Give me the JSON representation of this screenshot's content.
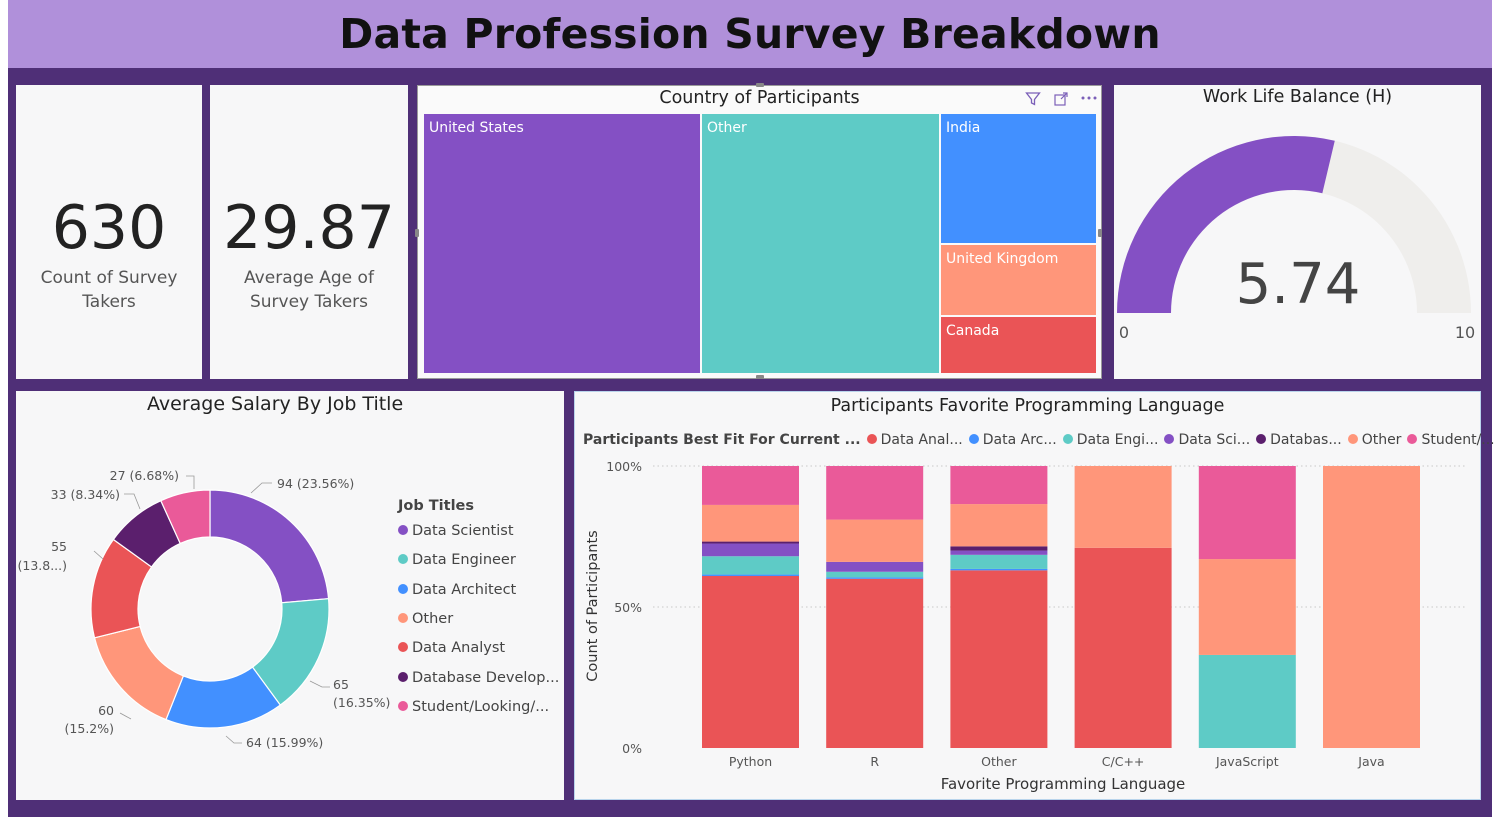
{
  "header": {
    "title": "Data Profession Survey Breakdown"
  },
  "kpis": [
    {
      "value": "630",
      "label_line1": "Count of Survey",
      "label_line2": "Takers"
    },
    {
      "value": "29.87",
      "label_line1": "Average Age of",
      "label_line2": "Survey Takers"
    }
  ],
  "treemap": {
    "title": "Country of Participants",
    "cells": [
      {
        "label": "United States",
        "color": "#8450c4"
      },
      {
        "label": "Other",
        "color": "#5ecbc6"
      },
      {
        "label": "India",
        "color": "#4290ff"
      },
      {
        "label": "United Kingdom",
        "color": "#ff967a"
      },
      {
        "label": "Canada",
        "color": "#ea5456"
      }
    ]
  },
  "gauge": {
    "title": "Work Life Balance (H)",
    "value": 5.74,
    "value_label": "5.74",
    "min": 0,
    "max": 10,
    "min_label": "0",
    "max_label": "10",
    "fill_color": "#8450c4",
    "track_color": "#efeeec"
  },
  "donut": {
    "title": "Average Salary By Job Title",
    "legend_title": "Job Titles",
    "legend": [
      {
        "label": "Data Scientist",
        "color": "#8450c4"
      },
      {
        "label": "Data Engineer",
        "color": "#5ecbc6"
      },
      {
        "label": "Data Architect",
        "color": "#4290ff"
      },
      {
        "label": "Other",
        "color": "#ff967a"
      },
      {
        "label": "Data Analyst",
        "color": "#ea5456"
      },
      {
        "label": "Database Develop...",
        "color": "#5b1f6d"
      },
      {
        "label": "Student/Looking/...",
        "color": "#ea5a99"
      }
    ],
    "data_labels": {
      "s1": "94 (23.56%)",
      "s2a": "65",
      "s2b": "(16.35%)",
      "s3": "64 (15.99%)",
      "s4a": "60",
      "s4b": "(15.2%)",
      "s5a": "55",
      "s5b": "(13.8...)",
      "s6": "33 (8.34%)",
      "s7": "27 (6.68%)"
    }
  },
  "bar_chart": {
    "title": "Participants Favorite Programming Language",
    "legend_title": "Participants Best Fit For Current ...",
    "legend": [
      {
        "label": "Data Anal...",
        "color": "#ea5456"
      },
      {
        "label": "Data Arc...",
        "color": "#4290ff"
      },
      {
        "label": "Data Engi...",
        "color": "#5ecbc6"
      },
      {
        "label": "Data Sci...",
        "color": "#8450c4"
      },
      {
        "label": "Databas...",
        "color": "#5b1f6d"
      },
      {
        "label": "Other",
        "color": "#ff967a"
      },
      {
        "label": "Student/...",
        "color": "#ea5a99"
      }
    ],
    "xlabel": "Favorite Programming Language",
    "ylabel": "Count of Participants",
    "ytick_labels": [
      "100%",
      "50%",
      "0%"
    ]
  },
  "chart_data": [
    {
      "type": "pie",
      "title": "Average Salary By Job Title",
      "categories": [
        "Data Scientist",
        "Data Engineer",
        "Data Architect",
        "Other",
        "Data Analyst",
        "Database Develop...",
        "Student/Looking/..."
      ],
      "values": [
        94,
        65,
        64,
        60,
        55,
        33,
        27
      ],
      "percentages": [
        23.56,
        16.35,
        15.99,
        15.2,
        13.8,
        8.34,
        6.68
      ],
      "legend_position": "right"
    },
    {
      "type": "bar",
      "stacked_percent": true,
      "title": "Participants Favorite Programming Language",
      "xlabel": "Favorite Programming Language",
      "ylabel": "Count of Participants",
      "categories": [
        "Python",
        "R",
        "Other",
        "C/C++",
        "JavaScript",
        "Java"
      ],
      "ylim": [
        0,
        100
      ],
      "series": [
        {
          "name": "Data Anal...",
          "values": [
            61,
            60,
            63,
            71,
            0,
            0
          ]
        },
        {
          "name": "Data Arc...",
          "values": [
            0.5,
            0.5,
            0.5,
            0,
            0,
            0
          ]
        },
        {
          "name": "Data Engi...",
          "values": [
            6.5,
            2,
            5,
            0,
            33,
            0
          ]
        },
        {
          "name": "Data Sci...",
          "values": [
            4.5,
            3.5,
            1.5,
            0,
            0,
            0
          ]
        },
        {
          "name": "Databas...",
          "values": [
            0.7,
            0,
            1.5,
            0,
            0,
            0
          ]
        },
        {
          "name": "Other",
          "values": [
            13,
            15,
            15,
            29,
            34,
            100
          ]
        },
        {
          "name": "Student/...",
          "values": [
            13.8,
            19,
            13.5,
            0,
            33,
            0
          ]
        }
      ],
      "legend_position": "top"
    },
    {
      "type": "treemap",
      "title": "Country of Participants",
      "categories": [
        "United States",
        "Other",
        "India",
        "United Kingdom",
        "Canada"
      ],
      "relative_share": [
        0.39,
        0.33,
        0.145,
        0.085,
        0.065
      ]
    }
  ]
}
